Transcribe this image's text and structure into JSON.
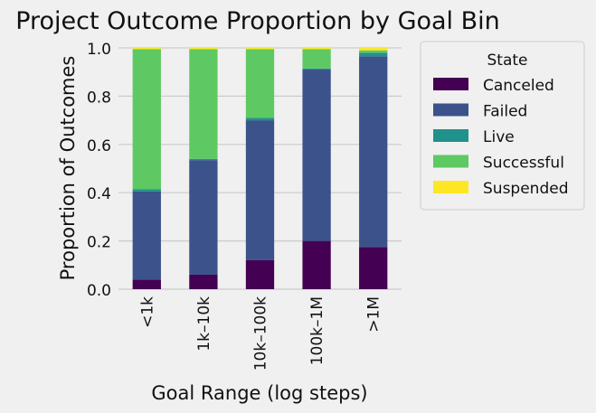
{
  "chart_data": {
    "type": "bar",
    "stacked": true,
    "title": "Project Outcome Proportion by Goal Bin",
    "xlabel": "Goal Range (log steps)",
    "ylabel": "Proportion of Outcomes",
    "ylim": [
      0,
      1.0
    ],
    "yticks": [
      "0.0",
      "0.2",
      "0.4",
      "0.6",
      "0.8",
      "1.0"
    ],
    "grid": true,
    "categories": [
      "<1k",
      "1k–10k",
      "10k–100k",
      "100k–1M",
      ">1M"
    ],
    "legend": {
      "title": "State",
      "placement": "outside-right"
    },
    "series": [
      {
        "name": "Canceled",
        "color": "#440154",
        "values": [
          0.04,
          0.06,
          0.12,
          0.2,
          0.175
        ]
      },
      {
        "name": "Failed",
        "color": "#3b528b",
        "values": [
          0.365,
          0.475,
          0.58,
          0.71,
          0.79
        ]
      },
      {
        "name": "Live",
        "color": "#21918c",
        "values": [
          0.01,
          0.005,
          0.01,
          0.005,
          0.015
        ]
      },
      {
        "name": "Successful",
        "color": "#5ec962",
        "values": [
          0.58,
          0.455,
          0.285,
          0.08,
          0.01
        ]
      },
      {
        "name": "Suspended",
        "color": "#fde725",
        "values": [
          0.005,
          0.005,
          0.005,
          0.005,
          0.01
        ]
      }
    ]
  }
}
